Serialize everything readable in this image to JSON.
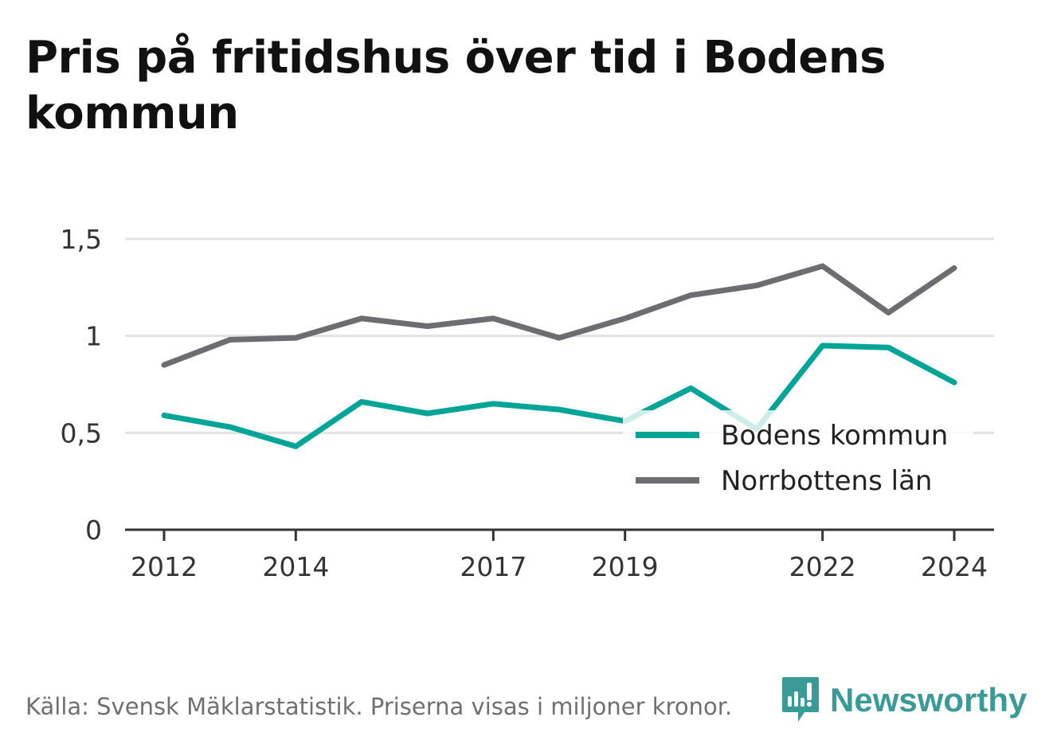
{
  "title": "Pris på fritidshus över tid i Bodens kommun",
  "source": "Källa: Svensk Mäklarstatistik. Priserna visas i miljoner kronor.",
  "brand": {
    "name": "Newsworthy",
    "icon": "newsworthy-logo-icon",
    "color": "#3a9a96"
  },
  "chart_data": {
    "type": "line",
    "title": "Pris på fritidshus över tid i Bodens kommun",
    "xlabel": "",
    "ylabel": "",
    "x": [
      2012,
      2013,
      2014,
      2015,
      2016,
      2017,
      2018,
      2019,
      2020,
      2021,
      2022,
      2023,
      2024
    ],
    "x_ticks": [
      2012,
      2014,
      2017,
      2019,
      2022,
      2024
    ],
    "x_tick_labels": [
      "2012",
      "2014",
      "2017",
      "2019",
      "2022",
      "2024"
    ],
    "ylim": [
      0,
      1.5
    ],
    "y_ticks": [
      0,
      0.5,
      1,
      1.5
    ],
    "y_tick_labels": [
      "0",
      "0,5",
      "1",
      "1,5"
    ],
    "grid": true,
    "legend_position": "bottom-right",
    "series": [
      {
        "name": "Bodens kommun",
        "color": "#00a597",
        "values": [
          0.59,
          0.53,
          0.43,
          0.66,
          0.6,
          0.65,
          0.62,
          0.56,
          0.73,
          0.52,
          0.95,
          0.94,
          0.76
        ]
      },
      {
        "name": "Norrbottens län",
        "color": "#6d6c71",
        "values": [
          0.85,
          0.98,
          0.99,
          1.09,
          1.05,
          1.09,
          0.99,
          1.09,
          1.21,
          1.26,
          1.36,
          1.12,
          1.35
        ]
      }
    ]
  }
}
